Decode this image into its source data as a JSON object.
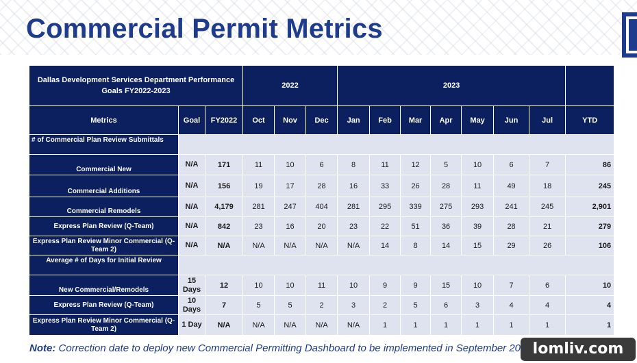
{
  "page": {
    "title": "Commercial Permit Metrics"
  },
  "table": {
    "header_title": "Dallas Development Services Department Performance Goals FY2022-2023",
    "year_2022": "2022",
    "year_2023": "2023",
    "columns": [
      "Metrics",
      "Goal",
      "FY2022",
      "Oct",
      "Nov",
      "Dec",
      "Jan",
      "Feb",
      "Mar",
      "Apr",
      "May",
      "Jun",
      "Jul",
      "YTD"
    ],
    "section1": "# of Commercial Plan Review Submittals",
    "section2": "Average # of Days for Initial Review",
    "rows1": [
      {
        "label": "Commercial New",
        "goal": "N/A",
        "fy": "171",
        "months": [
          "11",
          "10",
          "6",
          "8",
          "11",
          "12",
          "5",
          "10",
          "6",
          "7"
        ],
        "ytd": "86"
      },
      {
        "label": "Commercial Additions",
        "goal": "N/A",
        "fy": "156",
        "months": [
          "19",
          "17",
          "28",
          "16",
          "33",
          "26",
          "28",
          "11",
          "49",
          "18"
        ],
        "ytd": "245"
      },
      {
        "label": "Commercial Remodels",
        "goal": "N/A",
        "fy": "4,179",
        "months": [
          "281",
          "247",
          "404",
          "281",
          "295",
          "339",
          "275",
          "293",
          "241",
          "245"
        ],
        "ytd": "2,901"
      },
      {
        "label": "Express Plan Review (Q-Team)",
        "goal": "N/A",
        "fy": "842",
        "months": [
          "23",
          "16",
          "20",
          "23",
          "22",
          "51",
          "36",
          "39",
          "28",
          "21"
        ],
        "ytd": "279"
      },
      {
        "label": "Express Plan Review Minor Commercial (Q-Team 2)",
        "goal": "N/A",
        "fy": "N/A",
        "months": [
          "N/A",
          "N/A",
          "N/A",
          "N/A",
          "14",
          "8",
          "14",
          "15",
          "29",
          "26"
        ],
        "ytd": "106"
      }
    ],
    "rows2": [
      {
        "label": "New Commercial/Remodels",
        "goal": "15 Days",
        "fy": "12",
        "months": [
          "10",
          "10",
          "11",
          "10",
          "9",
          "9",
          "15",
          "10",
          "7",
          "6"
        ],
        "ytd": "10"
      },
      {
        "label": "Express Plan Review (Q-Team)",
        "goal": "10 Days",
        "fy": "7",
        "months": [
          "5",
          "5",
          "2",
          "3",
          "2",
          "5",
          "6",
          "3",
          "4",
          "4"
        ],
        "ytd": "4"
      },
      {
        "label": "Express Plan Review Minor Commercial (Q-Team 2)",
        "goal": "1 Day",
        "fy": "N/A",
        "months": [
          "N/A",
          "N/A",
          "N/A",
          "N/A",
          "1",
          "1",
          "1",
          "1",
          "1",
          "1"
        ],
        "ytd": "1"
      }
    ]
  },
  "note": {
    "prefix": "Note:",
    "text": " Correction date to deploy new Commercial Permitting Dashboard to be implemented in September 2023"
  },
  "watermark": "lomliv.com",
  "colors": {
    "title": "#1f3c8c",
    "header": "#0c2060",
    "cell": "#dfe3f0"
  }
}
